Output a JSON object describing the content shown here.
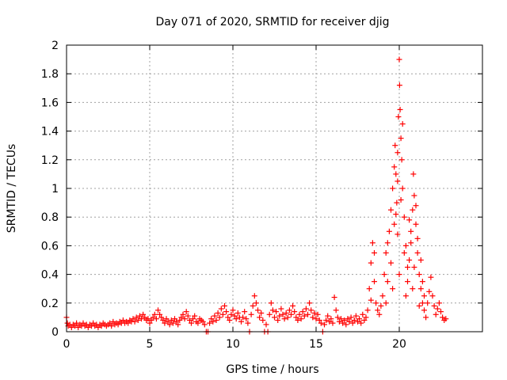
{
  "chart_data": {
    "type": "scatter",
    "title": "Day 071 of 2020, SRMTID for receiver djig",
    "xlabel": "GPS time / hours",
    "ylabel": "SRMTID / TECUs",
    "xlim": [
      0,
      25
    ],
    "ylim": [
      0,
      2
    ],
    "x_ticks": [
      0,
      5,
      10,
      15,
      20
    ],
    "y_ticks": [
      0,
      0.2,
      0.4,
      0.6,
      0.8,
      1,
      1.2,
      1.4,
      1.6,
      1.8,
      2
    ],
    "x_tick_labels": [
      "0",
      "5",
      "10",
      "15",
      "20"
    ],
    "y_tick_labels": [
      "0",
      "0.2",
      "0.4",
      "0.6",
      "0.8",
      "1",
      "1.2",
      "1.4",
      "1.6",
      "1.8",
      "2"
    ],
    "grid": true,
    "marker": "plus",
    "color": "#ff0000",
    "series": [
      {
        "name": "djig",
        "points": [
          [
            0.0,
            0.1
          ],
          [
            0.05,
            0.06
          ],
          [
            0.1,
            0.04
          ],
          [
            0.2,
            0.05
          ],
          [
            0.3,
            0.03
          ],
          [
            0.4,
            0.05
          ],
          [
            0.5,
            0.04
          ],
          [
            0.6,
            0.06
          ],
          [
            0.7,
            0.03
          ],
          [
            0.8,
            0.05
          ],
          [
            0.9,
            0.04
          ],
          [
            1.0,
            0.06
          ],
          [
            1.1,
            0.04
          ],
          [
            1.2,
            0.05
          ],
          [
            1.3,
            0.03
          ],
          [
            1.4,
            0.05
          ],
          [
            1.5,
            0.04
          ],
          [
            1.6,
            0.06
          ],
          [
            1.7,
            0.04
          ],
          [
            1.8,
            0.05
          ],
          [
            1.9,
            0.03
          ],
          [
            2.0,
            0.05
          ],
          [
            2.1,
            0.04
          ],
          [
            2.2,
            0.06
          ],
          [
            2.3,
            0.05
          ],
          [
            2.4,
            0.04
          ],
          [
            2.5,
            0.05
          ],
          [
            2.6,
            0.06
          ],
          [
            2.7,
            0.04
          ],
          [
            2.8,
            0.07
          ],
          [
            2.9,
            0.05
          ],
          [
            3.0,
            0.06
          ],
          [
            3.1,
            0.05
          ],
          [
            3.2,
            0.07
          ],
          [
            3.3,
            0.06
          ],
          [
            3.4,
            0.08
          ],
          [
            3.5,
            0.06
          ],
          [
            3.6,
            0.07
          ],
          [
            3.7,
            0.06
          ],
          [
            3.8,
            0.08
          ],
          [
            3.9,
            0.07
          ],
          [
            4.0,
            0.09
          ],
          [
            4.1,
            0.07
          ],
          [
            4.2,
            0.1
          ],
          [
            4.3,
            0.08
          ],
          [
            4.4,
            0.11
          ],
          [
            4.5,
            0.09
          ],
          [
            4.6,
            0.12
          ],
          [
            4.7,
            0.1
          ],
          [
            4.8,
            0.08
          ],
          [
            4.9,
            0.09
          ],
          [
            5.0,
            0.06
          ],
          [
            5.1,
            0.08
          ],
          [
            5.2,
            0.1
          ],
          [
            5.3,
            0.12
          ],
          [
            5.4,
            0.09
          ],
          [
            5.5,
            0.15
          ],
          [
            5.6,
            0.12
          ],
          [
            5.7,
            0.1
          ],
          [
            5.8,
            0.08
          ],
          [
            5.9,
            0.06
          ],
          [
            6.0,
            0.09
          ],
          [
            6.1,
            0.07
          ],
          [
            6.2,
            0.05
          ],
          [
            6.3,
            0.08
          ],
          [
            6.4,
            0.06
          ],
          [
            6.5,
            0.09
          ],
          [
            6.6,
            0.07
          ],
          [
            6.7,
            0.05
          ],
          [
            6.8,
            0.08
          ],
          [
            6.9,
            0.1
          ],
          [
            7.0,
            0.12
          ],
          [
            7.1,
            0.09
          ],
          [
            7.2,
            0.14
          ],
          [
            7.3,
            0.11
          ],
          [
            7.4,
            0.08
          ],
          [
            7.5,
            0.06
          ],
          [
            7.6,
            0.09
          ],
          [
            7.7,
            0.11
          ],
          [
            7.8,
            0.07
          ],
          [
            7.9,
            0.06
          ],
          [
            8.0,
            0.09
          ],
          [
            8.1,
            0.08
          ],
          [
            8.2,
            0.07
          ],
          [
            8.3,
            0.05
          ],
          [
            8.4,
            0.0
          ],
          [
            8.5,
            0.0
          ],
          [
            8.6,
            0.06
          ],
          [
            8.7,
            0.09
          ],
          [
            8.8,
            0.07
          ],
          [
            8.9,
            0.11
          ],
          [
            9.0,
            0.08
          ],
          [
            9.1,
            0.13
          ],
          [
            9.2,
            0.1
          ],
          [
            9.3,
            0.16
          ],
          [
            9.4,
            0.12
          ],
          [
            9.5,
            0.18
          ],
          [
            9.6,
            0.14
          ],
          [
            9.7,
            0.1
          ],
          [
            9.8,
            0.08
          ],
          [
            9.9,
            0.12
          ],
          [
            10.0,
            0.15
          ],
          [
            10.1,
            0.11
          ],
          [
            10.2,
            0.09
          ],
          [
            10.3,
            0.13
          ],
          [
            10.4,
            0.1
          ],
          [
            10.5,
            0.07
          ],
          [
            10.6,
            0.1
          ],
          [
            10.7,
            0.14
          ],
          [
            10.8,
            0.09
          ],
          [
            10.9,
            0.06
          ],
          [
            11.0,
            0.0
          ],
          [
            11.1,
            0.12
          ],
          [
            11.2,
            0.18
          ],
          [
            11.3,
            0.25
          ],
          [
            11.4,
            0.2
          ],
          [
            11.5,
            0.15
          ],
          [
            11.6,
            0.1
          ],
          [
            11.7,
            0.13
          ],
          [
            11.8,
            0.08
          ],
          [
            11.9,
            0.0
          ],
          [
            12.0,
            0.05
          ],
          [
            12.1,
            0.0
          ],
          [
            12.2,
            0.12
          ],
          [
            12.3,
            0.2
          ],
          [
            12.4,
            0.15
          ],
          [
            12.5,
            0.1
          ],
          [
            12.6,
            0.14
          ],
          [
            12.7,
            0.08
          ],
          [
            12.8,
            0.11
          ],
          [
            12.9,
            0.16
          ],
          [
            13.0,
            0.12
          ],
          [
            13.1,
            0.09
          ],
          [
            13.2,
            0.13
          ],
          [
            13.3,
            0.1
          ],
          [
            13.4,
            0.15
          ],
          [
            13.5,
            0.12
          ],
          [
            13.6,
            0.18
          ],
          [
            13.7,
            0.14
          ],
          [
            13.8,
            0.1
          ],
          [
            13.9,
            0.08
          ],
          [
            14.0,
            0.12
          ],
          [
            14.1,
            0.09
          ],
          [
            14.2,
            0.14
          ],
          [
            14.3,
            0.11
          ],
          [
            14.4,
            0.16
          ],
          [
            14.5,
            0.12
          ],
          [
            14.6,
            0.2
          ],
          [
            14.7,
            0.15
          ],
          [
            14.8,
            0.1
          ],
          [
            14.9,
            0.13
          ],
          [
            15.0,
            0.09
          ],
          [
            15.1,
            0.12
          ],
          [
            15.2,
            0.08
          ],
          [
            15.3,
            0.06
          ],
          [
            15.4,
            0.0
          ],
          [
            15.5,
            0.05
          ],
          [
            15.6,
            0.08
          ],
          [
            15.7,
            0.11
          ],
          [
            15.8,
            0.07
          ],
          [
            15.9,
            0.09
          ],
          [
            16.0,
            0.06
          ],
          [
            16.1,
            0.24
          ],
          [
            16.2,
            0.15
          ],
          [
            16.3,
            0.1
          ],
          [
            16.4,
            0.07
          ],
          [
            16.5,
            0.09
          ],
          [
            16.6,
            0.06
          ],
          [
            16.7,
            0.08
          ],
          [
            16.8,
            0.05
          ],
          [
            16.9,
            0.09
          ],
          [
            17.0,
            0.07
          ],
          [
            17.1,
            0.1
          ],
          [
            17.2,
            0.06
          ],
          [
            17.3,
            0.08
          ],
          [
            17.4,
            0.11
          ],
          [
            17.5,
            0.07
          ],
          [
            17.6,
            0.09
          ],
          [
            17.7,
            0.06
          ],
          [
            17.8,
            0.12
          ],
          [
            17.9,
            0.08
          ],
          [
            18.0,
            0.1
          ],
          [
            18.1,
            0.15
          ],
          [
            18.2,
            0.3
          ],
          [
            18.3,
            0.48
          ],
          [
            18.4,
            0.62
          ],
          [
            18.5,
            0.35
          ],
          [
            18.6,
            0.2
          ],
          [
            18.7,
            0.15
          ],
          [
            18.8,
            0.12
          ],
          [
            18.9,
            0.18
          ],
          [
            19.0,
            0.25
          ],
          [
            19.1,
            0.4
          ],
          [
            19.2,
            0.55
          ],
          [
            19.3,
            0.35
          ],
          [
            19.4,
            0.7
          ],
          [
            19.5,
            0.85
          ],
          [
            19.6,
            1.0
          ],
          [
            19.7,
            1.15
          ],
          [
            19.75,
            1.3
          ],
          [
            19.8,
            1.1
          ],
          [
            19.85,
            0.9
          ],
          [
            19.9,
            1.25
          ],
          [
            19.95,
            1.5
          ],
          [
            20.0,
            1.9
          ],
          [
            20.02,
            1.72
          ],
          [
            20.05,
            1.55
          ],
          [
            20.1,
            1.35
          ],
          [
            20.15,
            1.2
          ],
          [
            20.2,
            1.0
          ],
          [
            20.3,
            0.8
          ],
          [
            20.4,
            0.6
          ],
          [
            20.5,
            0.45
          ],
          [
            20.6,
            0.5
          ],
          [
            20.7,
            0.7
          ],
          [
            20.8,
            0.85
          ],
          [
            20.85,
            1.1
          ],
          [
            20.9,
            0.95
          ],
          [
            21.0,
            0.75
          ],
          [
            21.1,
            0.55
          ],
          [
            21.2,
            0.4
          ],
          [
            21.3,
            0.3
          ],
          [
            21.4,
            0.2
          ],
          [
            21.5,
            0.15
          ],
          [
            21.6,
            0.1
          ],
          [
            21.7,
            0.2
          ],
          [
            21.8,
            0.28
          ],
          [
            21.9,
            0.38
          ],
          [
            22.0,
            0.25
          ],
          [
            22.1,
            0.18
          ],
          [
            22.2,
            0.12
          ],
          [
            22.3,
            0.16
          ],
          [
            22.4,
            0.2
          ],
          [
            22.5,
            0.14
          ],
          [
            22.6,
            0.1
          ],
          [
            22.7,
            0.08
          ],
          [
            22.8,
            0.09
          ],
          [
            18.3,
            0.22
          ],
          [
            18.5,
            0.55
          ],
          [
            19.3,
            0.62
          ],
          [
            19.5,
            0.48
          ],
          [
            19.7,
            0.75
          ],
          [
            19.9,
            0.68
          ],
          [
            20.1,
            0.92
          ],
          [
            20.3,
            0.55
          ],
          [
            20.5,
            0.35
          ],
          [
            20.7,
            0.62
          ],
          [
            20.9,
            0.45
          ],
          [
            21.1,
            0.65
          ],
          [
            21.3,
            0.5
          ],
          [
            21.5,
            0.25
          ],
          [
            19.6,
            0.3
          ],
          [
            20.0,
            0.4
          ],
          [
            20.4,
            0.25
          ],
          [
            20.8,
            0.3
          ],
          [
            21.2,
            0.18
          ],
          [
            19.2,
            0.2
          ],
          [
            19.8,
            0.82
          ],
          [
            20.2,
            1.45
          ],
          [
            19.9,
            1.05
          ],
          [
            20.6,
            0.78
          ],
          [
            21.0,
            0.88
          ],
          [
            21.4,
            0.35
          ]
        ]
      }
    ]
  }
}
